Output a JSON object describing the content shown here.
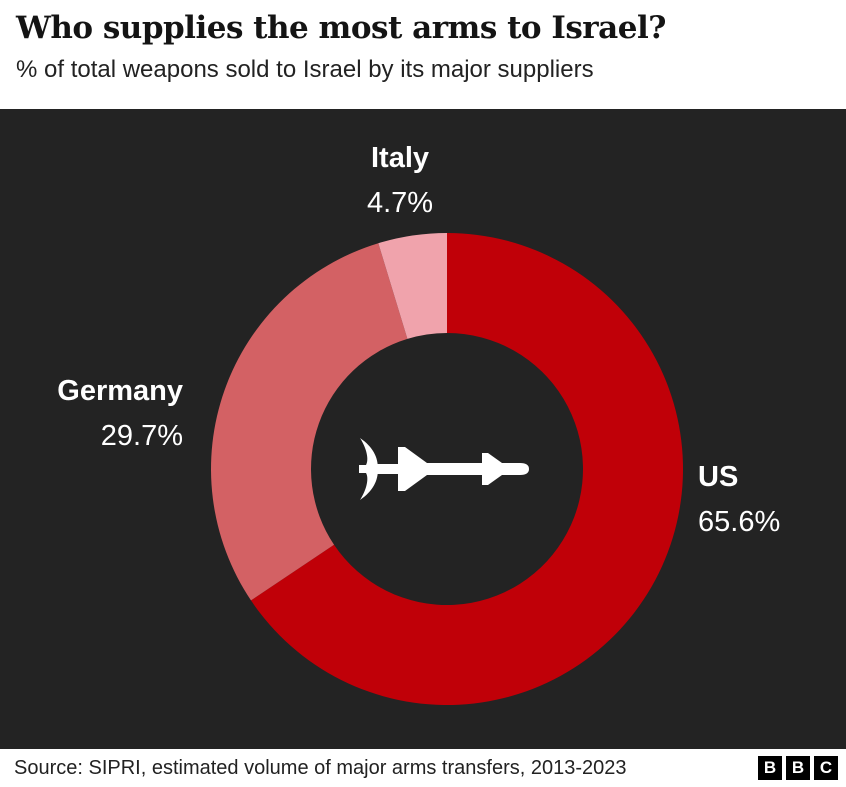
{
  "header": {
    "title": "Who supplies the most arms to Israel?",
    "subtitle": "% of total weapons sold to Israel by its major suppliers"
  },
  "chart_data": {
    "type": "pie",
    "style": "donut",
    "title": "Who supplies the most arms to Israel?",
    "subtitle": "% of total weapons sold to Israel by its major suppliers",
    "unit": "%",
    "start_angle_deg": 0,
    "direction": "clockwise",
    "background": "#232323",
    "center_icon": "missile-icon",
    "segments": [
      {
        "label": "US",
        "value": 65.6,
        "display": "65.6%",
        "color": "#c00008"
      },
      {
        "label": "Germany",
        "value": 29.7,
        "display": "29.7%",
        "color": "#d36164"
      },
      {
        "label": "Italy",
        "value": 4.7,
        "display": "4.7%",
        "color": "#f0a3ac"
      }
    ]
  },
  "footer": {
    "source": "Source: SIPRI, estimated volume of major arms transfers, 2013-2023",
    "logo_letters": [
      "B",
      "B",
      "C"
    ]
  }
}
